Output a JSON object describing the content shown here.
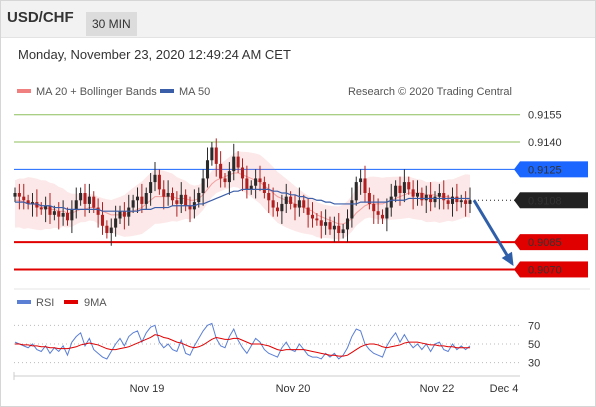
{
  "header": {
    "symbol": "USD/CHF",
    "timeframe": "30 MIN"
  },
  "datetime": "Monday, November 23, 2020 12:49:24 AM CET",
  "credit": "Research © 2020 Trading Central",
  "legend": {
    "ma_bb": "MA 20 + Bollinger Bands",
    "ma50": "MA 50",
    "rsi": "RSI",
    "rsi_ma": "9MA"
  },
  "colors": {
    "bollinger": "#f08080",
    "ma50": "#3b5ea8",
    "rsi": "#5b7fd4",
    "rsi_ma": "#e00000",
    "resistance": "#8cbf5a",
    "pivot": "#1a66ff",
    "support": "#e00000",
    "candle_up": "#2a2a2a",
    "candle_down": "#b02020",
    "current": "#222222"
  },
  "chart_data": [
    {
      "type": "candlestick",
      "ylim": [
        0.9062,
        0.9162
      ],
      "levels": [
        {
          "label": "0.9155",
          "value": 0.9155,
          "kind": "resistance"
        },
        {
          "label": "0.9140",
          "value": 0.914,
          "kind": "resistance"
        },
        {
          "label": "0.9125",
          "value": 0.9125,
          "kind": "pivot"
        },
        {
          "label": "0.9108",
          "value": 0.9108,
          "kind": "current"
        },
        {
          "label": "0.9085",
          "value": 0.9085,
          "kind": "support"
        },
        {
          "label": "0.9070",
          "value": 0.907,
          "kind": "support"
        }
      ],
      "close_path": [
        0.9112,
        0.911,
        0.9108,
        0.9106,
        0.9107,
        0.9104,
        0.9103,
        0.9105,
        0.91,
        0.9102,
        0.9099,
        0.9101,
        0.9097,
        0.9103,
        0.9108,
        0.9112,
        0.9106,
        0.911,
        0.9104,
        0.91,
        0.9094,
        0.909,
        0.9093,
        0.9098,
        0.9102,
        0.9099,
        0.9104,
        0.9108,
        0.911,
        0.9106,
        0.9112,
        0.9118,
        0.9122,
        0.9114,
        0.911,
        0.9112,
        0.9108,
        0.9106,
        0.9111,
        0.9105,
        0.9103,
        0.9107,
        0.9112,
        0.912,
        0.913,
        0.9137,
        0.9128,
        0.912,
        0.9118,
        0.9124,
        0.9132,
        0.9126,
        0.912,
        0.9114,
        0.9116,
        0.912,
        0.9118,
        0.9112,
        0.9108,
        0.9104,
        0.9102,
        0.9106,
        0.911,
        0.9106,
        0.9104,
        0.9108,
        0.9104,
        0.91,
        0.9098,
        0.9097,
        0.9094,
        0.9096,
        0.9092,
        0.9094,
        0.909,
        0.9092,
        0.9098,
        0.9108,
        0.9118,
        0.912,
        0.9112,
        0.9106,
        0.9102,
        0.91,
        0.9098,
        0.9104,
        0.911,
        0.9116,
        0.9112,
        0.9118,
        0.9114,
        0.911,
        0.9112,
        0.9108,
        0.9111,
        0.9107,
        0.911,
        0.9112,
        0.9108,
        0.9106,
        0.911,
        0.9107,
        0.9108,
        0.9106,
        0.9108
      ],
      "ma20": [
        0.9108,
        0.9108,
        0.9107,
        0.9107,
        0.9106,
        0.9105,
        0.9104,
        0.9104,
        0.9103,
        0.9103,
        0.9102,
        0.9102,
        0.9101,
        0.9101,
        0.9102,
        0.9103,
        0.9103,
        0.9104,
        0.9104,
        0.9103,
        0.9102,
        0.9101,
        0.91,
        0.91,
        0.91,
        0.91,
        0.9101,
        0.9102,
        0.9103,
        0.9104,
        0.9106,
        0.9108,
        0.911,
        0.911,
        0.911,
        0.911,
        0.911,
        0.9109,
        0.9109,
        0.9109,
        0.9108,
        0.9108,
        0.9109,
        0.9111,
        0.9114,
        0.9117,
        0.9119,
        0.912,
        0.9121,
        0.9122,
        0.9123,
        0.9123,
        0.9122,
        0.9121,
        0.912,
        0.9119,
        0.9118,
        0.9116,
        0.9114,
        0.9112,
        0.911,
        0.9109,
        0.9108,
        0.9107,
        0.9106,
        0.9105,
        0.9104,
        0.9103,
        0.9102,
        0.91,
        0.9099,
        0.9098,
        0.9097,
        0.9096,
        0.9095,
        0.9095,
        0.9096,
        0.9098,
        0.9101,
        0.9103,
        0.9105,
        0.9106,
        0.9106,
        0.9106,
        0.9106,
        0.9107,
        0.9108,
        0.9109,
        0.911,
        0.9111,
        0.9112,
        0.9112,
        0.9112,
        0.9112,
        0.9111,
        0.9111,
        0.9111,
        0.911,
        0.911,
        0.911,
        0.9109,
        0.9109,
        0.9109,
        0.9109,
        0.9108
      ],
      "ma50": [
        0.9107,
        0.9107,
        0.9107,
        0.9106,
        0.9106,
        0.9106,
        0.9105,
        0.9105,
        0.9105,
        0.9104,
        0.9104,
        0.9104,
        0.9103,
        0.9103,
        0.9103,
        0.9103,
        0.9103,
        0.9103,
        0.9103,
        0.9103,
        0.9102,
        0.9102,
        0.9102,
        0.9102,
        0.9102,
        0.9102,
        0.9102,
        0.9102,
        0.9102,
        0.9103,
        0.9103,
        0.9103,
        0.9104,
        0.9104,
        0.9104,
        0.9104,
        0.9105,
        0.9105,
        0.9105,
        0.9105,
        0.9105,
        0.9105,
        0.9106,
        0.9106,
        0.9107,
        0.9108,
        0.9109,
        0.911,
        0.9111,
        0.9112,
        0.9113,
        0.9113,
        0.9114,
        0.9114,
        0.9114,
        0.9114,
        0.9114,
        0.9114,
        0.9114,
        0.9113,
        0.9113,
        0.9112,
        0.9112,
        0.9111,
        0.9111,
        0.911,
        0.911,
        0.9109,
        0.9109,
        0.9108,
        0.9108,
        0.9107,
        0.9107,
        0.9106,
        0.9106,
        0.9106,
        0.9106,
        0.9106,
        0.9106,
        0.9107,
        0.9107,
        0.9107,
        0.9107,
        0.9107,
        0.9107,
        0.9107,
        0.9108,
        0.9108,
        0.9108,
        0.9108,
        0.9109,
        0.9109,
        0.9109,
        0.9109,
        0.9109,
        0.9109,
        0.9109,
        0.9109,
        0.9109,
        0.9109,
        0.9109,
        0.9109,
        0.9109,
        0.9109,
        0.9109
      ],
      "band_width": 0.0011,
      "forecast": {
        "from": 0.9108,
        "to": 0.907
      }
    },
    {
      "type": "line",
      "ylim": [
        20,
        80
      ],
      "ticks": [
        "70",
        "50",
        "30"
      ],
      "tick_values": [
        70,
        50,
        30
      ],
      "rsi": [
        52,
        50,
        48,
        46,
        50,
        44,
        42,
        48,
        40,
        46,
        42,
        48,
        38,
        52,
        58,
        62,
        48,
        56,
        44,
        40,
        36,
        34,
        42,
        50,
        56,
        48,
        58,
        62,
        64,
        52,
        62,
        68,
        70,
        52,
        46,
        50,
        44,
        42,
        54,
        40,
        38,
        48,
        56,
        64,
        70,
        72,
        56,
        48,
        46,
        58,
        66,
        54,
        46,
        40,
        48,
        56,
        52,
        44,
        40,
        38,
        36,
        46,
        52,
        44,
        42,
        50,
        44,
        38,
        36,
        36,
        34,
        40,
        36,
        40,
        34,
        38,
        46,
        58,
        66,
        64,
        50,
        44,
        40,
        38,
        36,
        48,
        56,
        62,
        52,
        60,
        52,
        46,
        50,
        44,
        50,
        42,
        50,
        52,
        44,
        42,
        50,
        44,
        48,
        44,
        48
      ],
      "rsi_ma": [
        50,
        50,
        49,
        49,
        48,
        48,
        47,
        47,
        46,
        46,
        45,
        45,
        45,
        46,
        47,
        49,
        50,
        51,
        50,
        49,
        47,
        45,
        44,
        44,
        45,
        46,
        47,
        49,
        51,
        53,
        55,
        57,
        60,
        59,
        57,
        56,
        54,
        52,
        51,
        49,
        47,
        46,
        47,
        49,
        52,
        55,
        57,
        56,
        55,
        55,
        56,
        56,
        54,
        52,
        50,
        50,
        50,
        49,
        48,
        46,
        44,
        43,
        44,
        44,
        44,
        44,
        44,
        43,
        42,
        41,
        40,
        39,
        38,
        38,
        37,
        37,
        38,
        41,
        44,
        47,
        49,
        50,
        50,
        49,
        47,
        46,
        47,
        48,
        49,
        51,
        52,
        52,
        52,
        51,
        50,
        49,
        49,
        48,
        48,
        47,
        47,
        46,
        46,
        46,
        46
      ]
    }
  ],
  "x_axis": [
    "Nov 19",
    "Nov 20",
    "Nov 22",
    "Dec 4"
  ]
}
